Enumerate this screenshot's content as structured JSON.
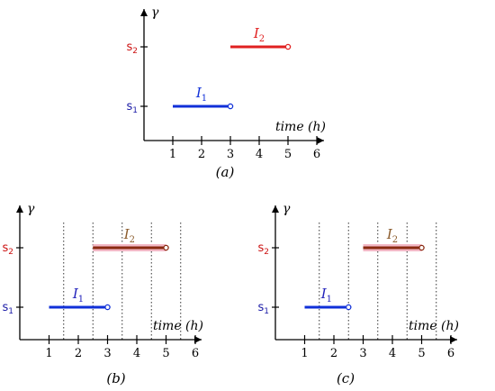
{
  "colors": {
    "axis": "#000000",
    "s1": "#1a1aa6",
    "s2": "#cc1111",
    "i1_panel_a": "#1030d8",
    "i2_panel_a": "#e02020",
    "i1_label_bc": "#2222bb",
    "i2_label_bc": "#8a5a2a",
    "i2_line_bc": "#8a2a10",
    "i2_glow_bc": "#f2b8c6"
  },
  "panels": [
    {
      "caption": "(a)",
      "y_label": "γ",
      "x_label": "time (h)",
      "ticks": [
        "1",
        "2",
        "3",
        "4",
        "5",
        "6"
      ],
      "states": [
        "s1",
        "s2"
      ],
      "intervals": [
        {
          "label": "I1",
          "state": "s1",
          "start": 1,
          "end": 3
        },
        {
          "label": "I2",
          "state": "s2",
          "start": 3,
          "end": 5
        }
      ],
      "dotted_times": []
    },
    {
      "caption": "(b)",
      "y_label": "γ",
      "x_label": "time (h)",
      "ticks": [
        "1",
        "2",
        "3",
        "4",
        "5",
        "6"
      ],
      "states": [
        "s1",
        "s2"
      ],
      "intervals": [
        {
          "label": "I1",
          "state": "s1",
          "start": 1,
          "end": 3
        },
        {
          "label": "I2",
          "state": "s2",
          "start": 2.5,
          "end": 5
        }
      ],
      "dotted_times": [
        1.5,
        2.5,
        3.5,
        4.5,
        5.5
      ]
    },
    {
      "caption": "(c)",
      "y_label": "γ",
      "x_label": "time (h)",
      "ticks": [
        "1",
        "2",
        "3",
        "4",
        "5",
        "6"
      ],
      "states": [
        "s1",
        "s2"
      ],
      "intervals": [
        {
          "label": "I1",
          "state": "s1",
          "start": 1,
          "end": 2.5
        },
        {
          "label": "I2",
          "state": "s2",
          "start": 3,
          "end": 5
        }
      ],
      "dotted_times": [
        1.5,
        2.5,
        3.5,
        4.5,
        5.5
      ]
    }
  ]
}
